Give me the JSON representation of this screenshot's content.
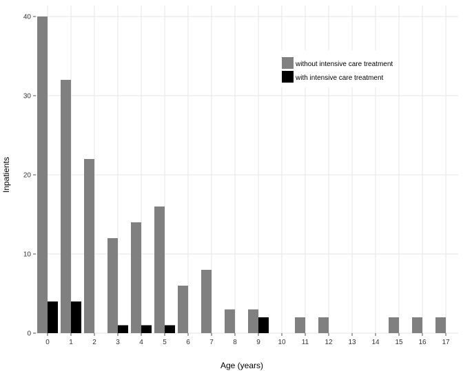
{
  "chart_data": {
    "type": "bar",
    "title": "",
    "xlabel": "Age (years)",
    "ylabel": "Inpatients",
    "categories": [
      "0",
      "1",
      "2",
      "3",
      "4",
      "5",
      "6",
      "7",
      "8",
      "9",
      "10",
      "11",
      "12",
      "13",
      "14",
      "15",
      "16",
      "17"
    ],
    "series": [
      {
        "name": "without intensive care treatment",
        "color": "#808080",
        "values": [
          40,
          32,
          22,
          12,
          14,
          16,
          6,
          8,
          3,
          3,
          0,
          2,
          2,
          0,
          0,
          2,
          2,
          2
        ]
      },
      {
        "name": "with intensive care treatment",
        "color": "#000000",
        "values": [
          4,
          4,
          0,
          1,
          1,
          1,
          0,
          0,
          0,
          2,
          0,
          0,
          0,
          0,
          0,
          0,
          0,
          0
        ]
      }
    ],
    "ylim": [
      0,
      40
    ],
    "yticks": [
      0,
      10,
      20,
      30,
      40
    ],
    "grid": true,
    "legend_position": "top-right"
  }
}
